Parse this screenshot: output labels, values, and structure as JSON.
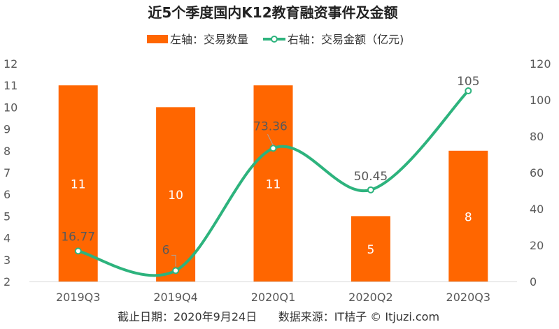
{
  "chart_data": {
    "type": "bar",
    "title": "近5个季度国内K12教育融资事件及金额",
    "categories": [
      "2019Q3",
      "2019Q4",
      "2020Q1",
      "2020Q2",
      "2020Q3"
    ],
    "series": [
      {
        "name": "左轴：交易数量",
        "type": "bar",
        "axis": "left",
        "color": "#ff6600",
        "values": [
          11,
          10,
          11,
          5,
          8
        ],
        "labels": [
          "11",
          "10",
          "11",
          "5",
          "8"
        ]
      },
      {
        "name": "右轴：交易金额（亿元)",
        "type": "line",
        "axis": "right",
        "color": "#2db37d",
        "values": [
          16.77,
          6,
          73.36,
          50.45,
          105
        ],
        "labels": [
          "16.77",
          "6",
          "73.36",
          "50.45",
          "105"
        ]
      }
    ],
    "y_left": {
      "min": 2,
      "max": 12,
      "ticks": [
        "2",
        "3",
        "4",
        "5",
        "6",
        "7",
        "8",
        "9",
        "10",
        "11",
        "12"
      ]
    },
    "y_right": {
      "min": 0,
      "max": 120,
      "ticks": [
        "0",
        "20",
        "40",
        "60",
        "80",
        "100",
        "120"
      ]
    },
    "grid": false,
    "legend": "top"
  },
  "source": "截止日期：2020年9月24日      数据来源：IT桔子 © Itjuzi.com"
}
